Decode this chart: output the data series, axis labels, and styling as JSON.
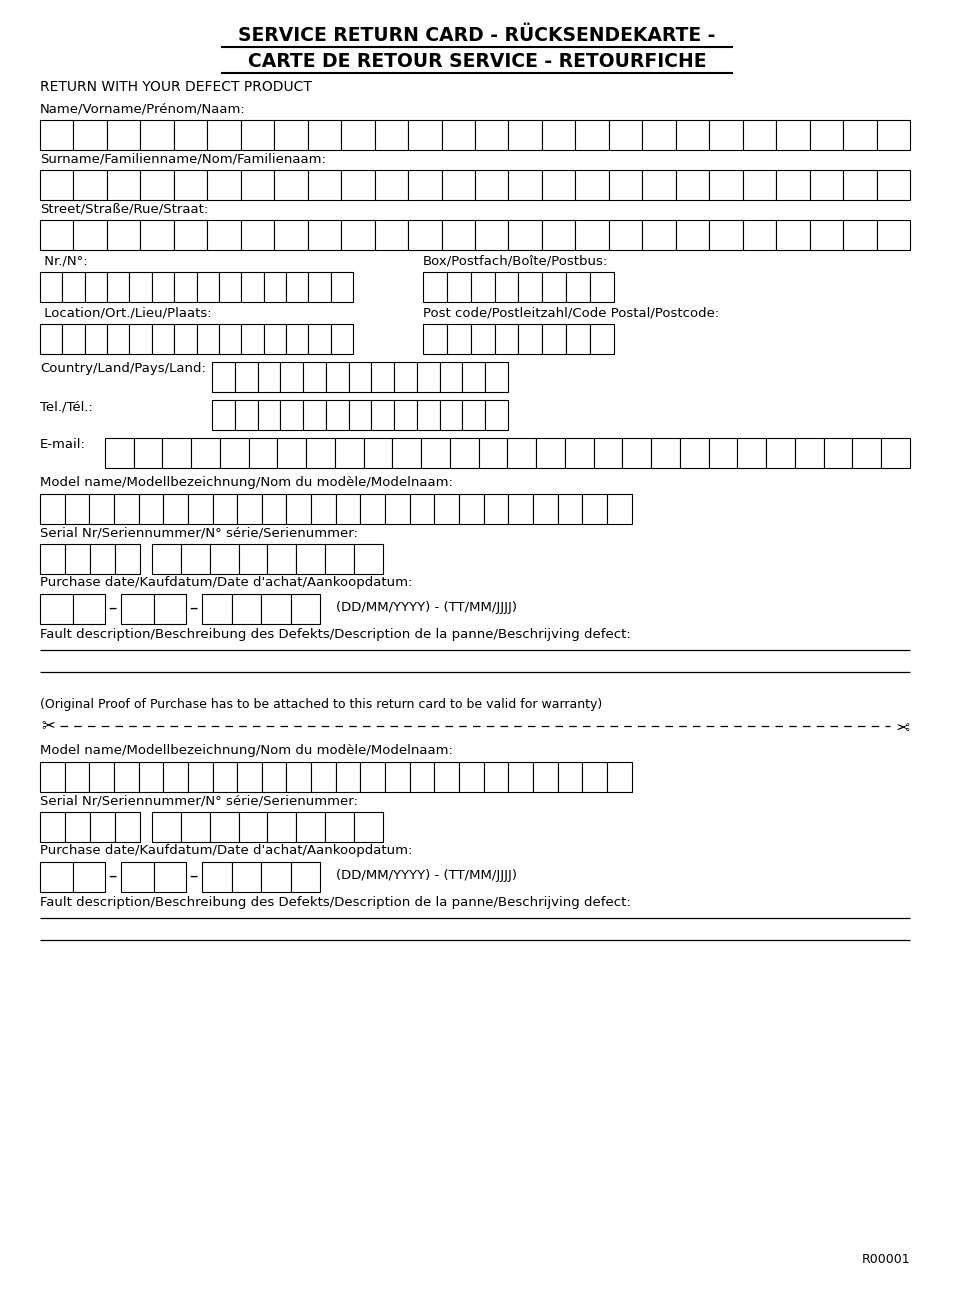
{
  "title_line1": "SERVICE RETURN CARD - RÜCKSENDEKARTE -",
  "title_line2": "CARTE DE RETOUR SERVICE - RETOURFICHE",
  "bg_color": "#ffffff",
  "text_color": "#000000",
  "labels": {
    "return_with": "RETURN WITH YOUR DEFECT PRODUCT",
    "name": "Name/Vorname/Prénom/Naam:",
    "surname": "Surname/Familienname/Nom/Familienaam:",
    "street": "Street/Straße/Rue/Straat:",
    "nr": " Nr./N°:",
    "box": "Box/Postfach/Boîte/Postbus:",
    "location": " Location/Ort./Lieu/Plaats:",
    "postcode": "Post code/Postleitzahl/Code Postal/Postcode:",
    "country": "Country/Land/Pays/Land:",
    "tel": "Tel./Tél.:",
    "email": "E-mail:",
    "model": "Model name/Modellbezeichnung/Nom du modèle/Modelnaam:",
    "serial": "Serial Nr/Seriennummer/N° série/Serienummer:",
    "purchase": "Purchase date/Kaufdatum/Date d'achat/Aankoopdatum:",
    "date_format": "(DD/MM/YYYY) - (TT/MM/JJJJ)",
    "fault": "Fault description/Beschreibung des Defekts/Description de la panne/Beschrijving defect:",
    "original_proof": "(Original Proof of Purchase has to be attached to this return card to be valid for warranty)",
    "page_num": "R00001"
  }
}
